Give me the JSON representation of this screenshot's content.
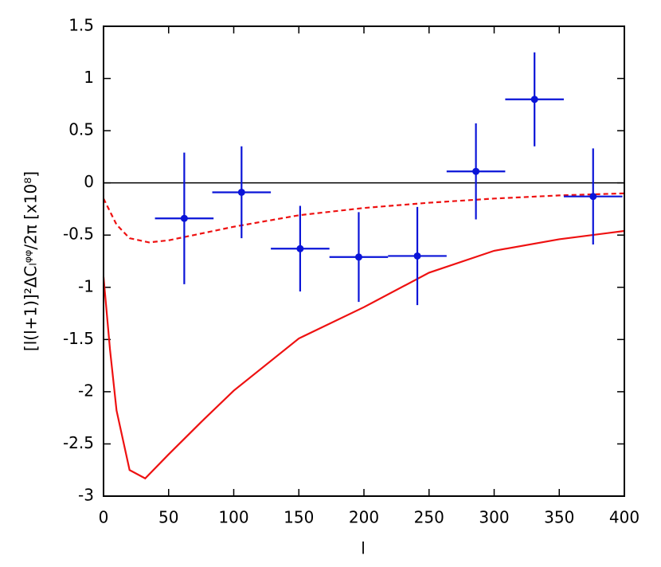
{
  "chart_data": {
    "type": "line",
    "xlabel": "l",
    "ylabel": "[l(l+1)]²ΔCₗᵠᵠ/2π [x10⁸]",
    "xlim": [
      0,
      400
    ],
    "ylim": [
      -3,
      1.5
    ],
    "xticks": [
      0,
      50,
      100,
      150,
      200,
      250,
      300,
      350,
      400
    ],
    "yticks": [
      -3,
      -2.5,
      -2,
      -1.5,
      -1,
      -0.5,
      0,
      0.5,
      1,
      1.5
    ],
    "hlines": [
      0
    ],
    "series": [
      {
        "color": "#ee1111",
        "dash": false,
        "x": [
          0,
          5,
          10,
          20,
          32,
          50,
          75,
          100,
          150,
          200,
          250,
          300,
          350,
          400
        ],
        "values": [
          -0.9,
          -1.6,
          -2.18,
          -2.75,
          -2.83,
          -2.6,
          -2.29,
          -1.99,
          -1.49,
          -1.19,
          -0.86,
          -0.65,
          -0.54,
          -0.46
        ]
      },
      {
        "color": "#ee1111",
        "dash": true,
        "x": [
          0,
          10,
          20,
          35,
          50,
          100,
          150,
          200,
          250,
          300,
          350,
          400
        ],
        "values": [
          -0.15,
          -0.4,
          -0.53,
          -0.57,
          -0.55,
          -0.42,
          -0.31,
          -0.24,
          -0.19,
          -0.15,
          -0.12,
          -0.1
        ]
      }
    ],
    "points": {
      "color": "#0a14d8",
      "x": [
        62,
        106,
        151,
        196,
        241,
        286,
        331,
        376
      ],
      "xerrors": [
        22.5,
        22.5,
        22.5,
        22.5,
        22.5,
        22.5,
        22.5,
        22.5
      ],
      "values": [
        -0.34,
        -0.09,
        -0.63,
        -0.71,
        -0.7,
        0.11,
        0.8,
        -0.13
      ],
      "errors": [
        0.63,
        0.44,
        0.41,
        0.43,
        0.47,
        0.46,
        0.45,
        0.46
      ]
    }
  }
}
